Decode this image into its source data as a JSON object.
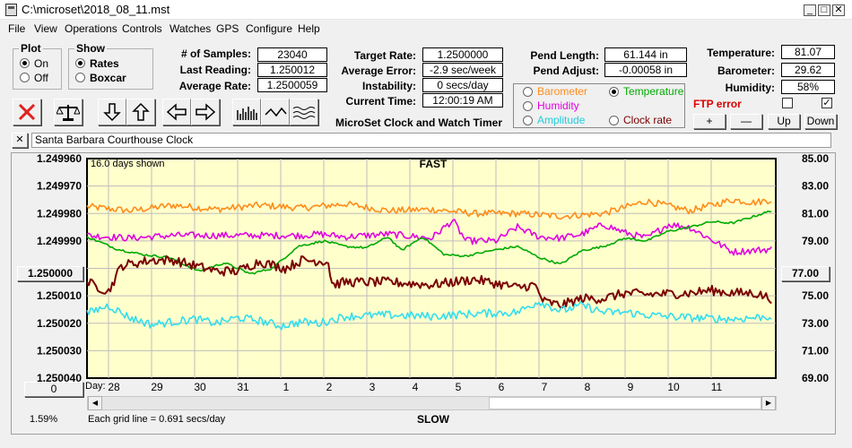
{
  "window": {
    "title": "C:\\microset\\2018_08_11.mst"
  },
  "menu": [
    "File",
    "View",
    "Operations",
    "Controls",
    "Watches",
    "GPS",
    "Configure",
    "Help"
  ],
  "plot_group": {
    "label": "Plot",
    "options": [
      "On",
      "Off"
    ],
    "selected": "On"
  },
  "show_group": {
    "label": "Show",
    "options": [
      "Rates",
      "Boxcar"
    ],
    "selected": "Rates"
  },
  "stats": {
    "samples_label": "# of Samples:",
    "samples": "23040",
    "last_reading_label": "Last Reading:",
    "last_reading": "1.250012",
    "average_rate_label": "Average Rate:",
    "average_rate": "1.2500059",
    "target_rate_label": "Target Rate:",
    "target_rate": "1.2500000",
    "average_error_label": "Average Error:",
    "average_error": "-2.9 sec/week",
    "instability_label": "Instability:",
    "instability": "0 secs/day",
    "current_time_label": "Current Time:",
    "current_time": "12:00:19 AM",
    "pend_length_label": "Pend Length:",
    "pend_length": "61.144 in",
    "pend_adjust_label": "Pend Adjust:",
    "pend_adjust": "-0.00058 in",
    "temperature_label": "Temperature:",
    "temperature": "81.07",
    "barometer_label": "Barometer:",
    "barometer": "29.62",
    "humidity_label": "Humidity:",
    "humidity": "58%"
  },
  "app_caption": "MicroSet Clock and Watch Timer",
  "plot_options": {
    "barometer": "Barometer",
    "temperature": "Temperature",
    "humidity": "Humidity",
    "amplitude": "Amplitude",
    "clock_rate": "Clock rate",
    "selected": "Temperature"
  },
  "ftp_error": "FTP error",
  "ftp_checkbox_2_checked": true,
  "adjust_buttons": {
    "plus": "+",
    "minus": "—",
    "up": "Up",
    "down": "Down"
  },
  "clock_name": "Santa Barbara Courthouse Clock",
  "close_x": "✕",
  "colors": {
    "plot_bg": "#ffffcc",
    "barometer": "#ff8c1a",
    "temperature": "#00aa00",
    "humidity": "#e000e0",
    "amplitude": "#33ddee",
    "clock_rate": "#7a0000",
    "ftp_error": "#dd0000"
  },
  "chart_data": {
    "type": "line",
    "days_shown": "16.0 days shown",
    "top_label": "FAST",
    "bottom_label": "SLOW",
    "grid_note": "Each grid line = 0.691 secs/day",
    "left_axis": {
      "ticks": [
        "1.249960",
        "1.249970",
        "1.249980",
        "1.249990",
        "1.250000",
        "1.250010",
        "1.250020",
        "1.250030",
        "1.250040"
      ],
      "highlight": "1.250000"
    },
    "right_axis": {
      "ticks": [
        "85.00",
        "83.00",
        "81.00",
        "79.00",
        "77.00",
        "75.00",
        "73.00",
        "71.00",
        "69.00"
      ],
      "highlight": "77.00"
    },
    "day_label": "Day:",
    "x_ticks": [
      "28",
      "29",
      "30",
      "31",
      "1",
      "2",
      "3",
      "4",
      "5",
      "6",
      "7",
      "8",
      "9",
      "10",
      "11"
    ],
    "x_tick_pos": [
      0.5,
      1.5,
      2.5,
      3.5,
      4.5,
      5.5,
      6.5,
      7.5,
      8.5,
      9.5,
      10.5,
      11.5,
      12.5,
      13.5,
      14.5
    ],
    "left_button_value": "0",
    "percent": "1.59%",
    "x_range": [
      0,
      16
    ],
    "series": [
      {
        "key": "barometer",
        "points": [
          [
            0,
            81.5
          ],
          [
            1,
            81.2
          ],
          [
            2,
            81.6
          ],
          [
            3,
            81.3
          ],
          [
            4,
            81.6
          ],
          [
            5,
            81.4
          ],
          [
            6,
            81.7
          ],
          [
            7,
            81.2
          ],
          [
            8,
            81.3
          ],
          [
            9,
            81.0
          ],
          [
            10,
            81.0
          ],
          [
            11,
            80.8
          ],
          [
            12,
            81.0
          ],
          [
            13,
            81.9
          ],
          [
            14,
            81.2
          ],
          [
            15,
            82.0
          ],
          [
            15.5,
            81.8
          ],
          [
            15.9,
            82.0
          ]
        ],
        "jitter": 0.25
      },
      {
        "key": "humidity",
        "points": [
          [
            0,
            79.4
          ],
          [
            1,
            79.2
          ],
          [
            2,
            79.4
          ],
          [
            3,
            79.4
          ],
          [
            4,
            79.4
          ],
          [
            5,
            79.4
          ],
          [
            5.4,
            79.5
          ],
          [
            6,
            79.3
          ],
          [
            7,
            79.5
          ],
          [
            8,
            79.2
          ],
          [
            8.5,
            80.5
          ],
          [
            8.8,
            79.0
          ],
          [
            9.5,
            79.0
          ],
          [
            10,
            80.0
          ],
          [
            10.5,
            79.3
          ],
          [
            11,
            79.2
          ],
          [
            11.5,
            79.5
          ],
          [
            12,
            80.2
          ],
          [
            12.5,
            79.6
          ],
          [
            13,
            79.2
          ],
          [
            13.5,
            80.2
          ],
          [
            14,
            80.0
          ],
          [
            15,
            78.2
          ],
          [
            15.9,
            78.4
          ]
        ],
        "jitter": 0.25
      },
      {
        "key": "temperature",
        "points": [
          [
            0,
            79.3
          ],
          [
            0.7,
            78.4
          ],
          [
            1.3,
            78.0
          ],
          [
            1.9,
            77.8
          ],
          [
            2.6,
            76.8
          ],
          [
            3.2,
            77.4
          ],
          [
            3.8,
            76.6
          ],
          [
            4.3,
            77.0
          ],
          [
            4.9,
            78.6
          ],
          [
            5.5,
            79.0
          ],
          [
            6,
            78.6
          ],
          [
            6.5,
            78.5
          ],
          [
            7,
            79.3
          ],
          [
            7.3,
            78.3
          ],
          [
            7.8,
            79.3
          ],
          [
            8.3,
            78.0
          ],
          [
            8.8,
            77.9
          ],
          [
            9.4,
            78.3
          ],
          [
            10,
            78.6
          ],
          [
            10.5,
            77.8
          ],
          [
            11,
            77.3
          ],
          [
            11.5,
            78.3
          ],
          [
            12,
            78.6
          ],
          [
            12.5,
            79.2
          ],
          [
            13,
            79.0
          ],
          [
            13.5,
            79.7
          ],
          [
            14,
            80.0
          ],
          [
            14.5,
            80.4
          ],
          [
            15,
            80.3
          ],
          [
            15.5,
            80.8
          ],
          [
            15.9,
            81.2
          ]
        ],
        "jitter": 0.08
      },
      {
        "key": "clock_rate",
        "points": [
          [
            0,
            76.0
          ],
          [
            0.5,
            75.3
          ],
          [
            0.8,
            77.2
          ],
          [
            1.5,
            77.6
          ],
          [
            2,
            77.6
          ],
          [
            2.5,
            77.2
          ],
          [
            3,
            76.8
          ],
          [
            3.5,
            76.8
          ],
          [
            4,
            77.5
          ],
          [
            4.6,
            77.0
          ],
          [
            5,
            77.6
          ],
          [
            5.6,
            77.5
          ],
          [
            5.7,
            75.8
          ],
          [
            6,
            76.0
          ],
          [
            7,
            76.0
          ],
          [
            8,
            75.8
          ],
          [
            9,
            76.2
          ],
          [
            9.5,
            75.9
          ],
          [
            10,
            75.6
          ],
          [
            10.4,
            75.8
          ],
          [
            10.6,
            74.6
          ],
          [
            11,
            74.3
          ],
          [
            11.5,
            74.8
          ],
          [
            12,
            74.8
          ],
          [
            12.5,
            75.2
          ],
          [
            13,
            75.1
          ],
          [
            14,
            75.2
          ],
          [
            14.5,
            75.4
          ],
          [
            15,
            75.2
          ],
          [
            15.5,
            75.2
          ],
          [
            15.9,
            74.8
          ]
        ],
        "jitter": 0.35
      },
      {
        "key": "amplitude",
        "points": [
          [
            0,
            73.7
          ],
          [
            0.5,
            74.3
          ],
          [
            1,
            73.4
          ],
          [
            1.5,
            72.9
          ],
          [
            2,
            73.1
          ],
          [
            2.5,
            73.3
          ],
          [
            3,
            73.0
          ],
          [
            3.5,
            73.4
          ],
          [
            4,
            73.2
          ],
          [
            4.5,
            72.8
          ],
          [
            5,
            73.1
          ],
          [
            5.4,
            73.0
          ],
          [
            6,
            73.5
          ],
          [
            7,
            73.6
          ],
          [
            8,
            73.5
          ],
          [
            9,
            73.7
          ],
          [
            10,
            73.8
          ],
          [
            10.5,
            74.6
          ],
          [
            11,
            73.9
          ],
          [
            11.5,
            74.3
          ],
          [
            12,
            73.8
          ],
          [
            12.5,
            73.8
          ],
          [
            13,
            73.6
          ],
          [
            14,
            73.4
          ],
          [
            15,
            73.3
          ],
          [
            15.9,
            73.5
          ]
        ],
        "jitter": 0.3
      }
    ]
  }
}
